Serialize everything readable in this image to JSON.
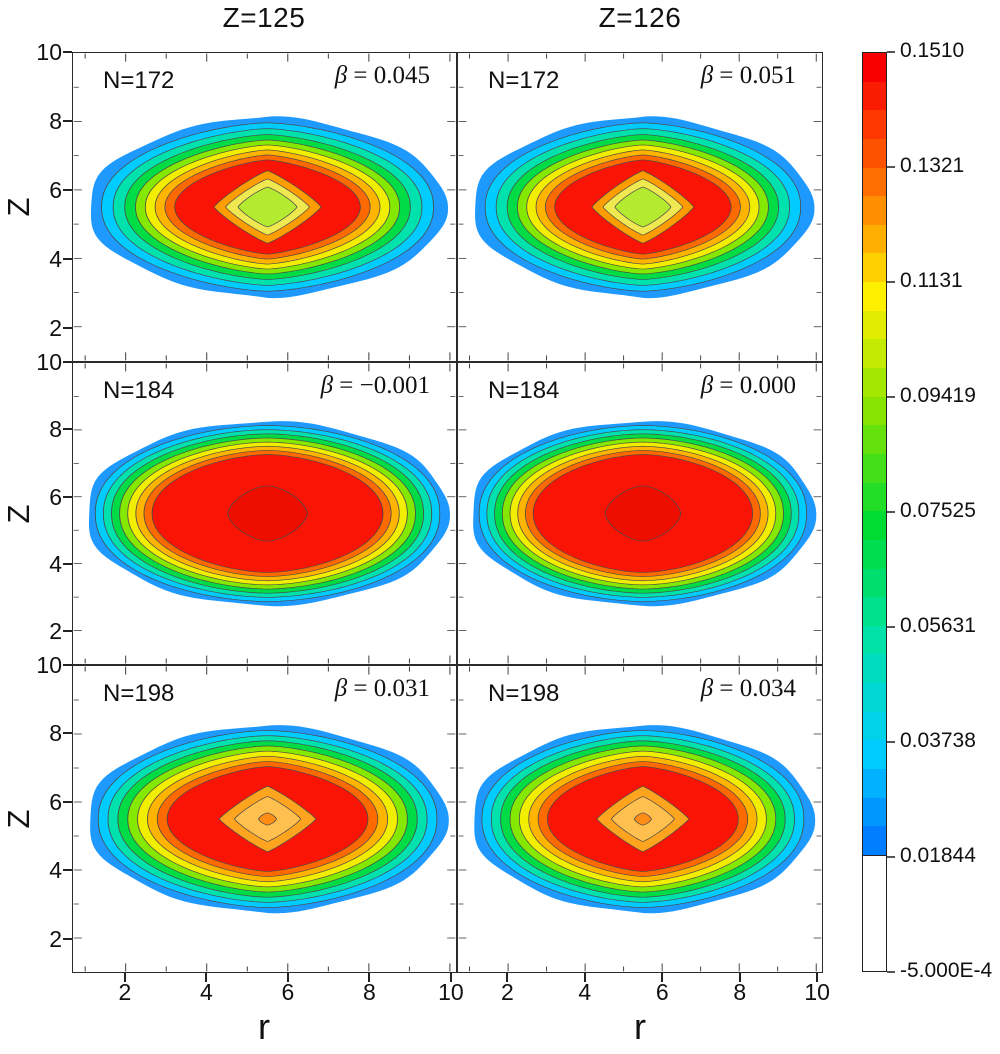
{
  "figure": {
    "description": "Nucleon density distribution contour plots for superheavy nuclei"
  },
  "chart_data": {
    "type": "filled-contour-grid",
    "columns": [
      "Z=125",
      "Z=126"
    ],
    "rows": [
      "N=172",
      "N=184",
      "N=198"
    ],
    "xlabel": "r",
    "ylabel": "Z",
    "xlim": [
      1,
      10
    ],
    "ylim": [
      1,
      10
    ],
    "x_ticks": [
      2,
      4,
      6,
      8,
      10
    ],
    "y_ticks": [
      10,
      8,
      6,
      4,
      2
    ],
    "levels": [
      -0.0005,
      0.01844,
      0.03738,
      0.05631,
      0.07525,
      0.09419,
      0.1131,
      0.1321,
      0.151
    ],
    "panels": [
      {
        "col": "Z=125",
        "row": "N=172",
        "n_label": "N=172",
        "beta_sym": "β",
        "beta_rest": " = 0.045",
        "beta_value": 0.045,
        "shape": "r172",
        "center": [
          5.5,
          5.5
        ],
        "extent_r": [
          1.2,
          9.9
        ],
        "extent_z": [
          2.9,
          8.1
        ],
        "profile": "central depression (semi-bubble)"
      },
      {
        "col": "Z=126",
        "row": "N=172",
        "n_label": "N=172",
        "beta_sym": "β",
        "beta_rest": " = 0.051",
        "beta_value": 0.051,
        "shape": "r172",
        "center": [
          5.5,
          5.5
        ],
        "extent_r": [
          1.2,
          9.9
        ],
        "extent_z": [
          2.9,
          8.1
        ],
        "profile": "central depression (semi-bubble)"
      },
      {
        "col": "Z=125",
        "row": "N=184",
        "n_label": "N=184",
        "beta_sym": "β",
        "beta_rest": " = −0.001",
        "beta_value": -0.001,
        "shape": "r184",
        "center": [
          5.5,
          5.5
        ],
        "extent_r": [
          1.1,
          9.9
        ],
        "extent_z": [
          2.8,
          8.2
        ],
        "profile": "flat-top density"
      },
      {
        "col": "Z=126",
        "row": "N=184",
        "n_label": "N=184",
        "beta_sym": "β",
        "beta_rest": " = 0.000",
        "beta_value": 0.0,
        "shape": "r184",
        "center": [
          5.5,
          5.5
        ],
        "extent_r": [
          1.1,
          9.9
        ],
        "extent_z": [
          2.8,
          8.2
        ],
        "profile": "flat-top density"
      },
      {
        "col": "Z=125",
        "row": "N=198",
        "n_label": "N=198",
        "beta_sym": "β",
        "beta_rest": " = 0.031",
        "beta_value": 0.031,
        "shape": "r198",
        "center": [
          5.5,
          5.5
        ],
        "extent_r": [
          1.1,
          9.9
        ],
        "extent_z": [
          2.7,
          8.2
        ],
        "profile": "mild central depression"
      },
      {
        "col": "Z=126",
        "row": "N=198",
        "n_label": "N=198",
        "beta_sym": "β",
        "beta_rest": " = 0.034",
        "beta_value": 0.034,
        "shape": "r198",
        "center": [
          5.5,
          5.5
        ],
        "extent_r": [
          1.1,
          9.9
        ],
        "extent_z": [
          2.7,
          8.2
        ],
        "profile": "mild central depression"
      }
    ],
    "band_colors_outer_to_inner": [
      "#1e9aff",
      "#00ccff",
      "#00e2ae",
      "#00dc46",
      "#84e800",
      "#f2ee00",
      "#ffb400",
      "#ff6a00",
      "#f91405"
    ],
    "row_shapes": {
      "r172": {
        "rx": 0.466,
        "rz": 0.294,
        "bands": [
          {
            "s": 1.0,
            "nx": 1.6,
            "ny": 2.2,
            "color": "#1e9aff"
          },
          {
            "s": 0.93,
            "nx": 1.57,
            "ny": 2.17,
            "color": "#00ccff"
          },
          {
            "s": 0.865,
            "nx": 1.54,
            "ny": 2.14,
            "color": "#00e2ae"
          },
          {
            "s": 0.8,
            "nx": 1.51,
            "ny": 2.11,
            "color": "#00dc46"
          },
          {
            "s": 0.74,
            "nx": 1.48,
            "ny": 2.08,
            "color": "#84e800"
          },
          {
            "s": 0.685,
            "nx": 1.45,
            "ny": 2.05,
            "color": "#f2ee00"
          },
          {
            "s": 0.63,
            "nx": 1.42,
            "ny": 2.02,
            "color": "#ffb400"
          },
          {
            "s": 0.575,
            "nx": 1.39,
            "ny": 1.99,
            "color": "#ff6a00"
          },
          {
            "s": 0.52,
            "nx": 1.36,
            "ny": 1.96,
            "color": "#f91405"
          }
        ],
        "center": [
          {
            "sx": 0.3,
            "sy": 0.4,
            "n": 1.15,
            "color": "#ff9c00"
          },
          {
            "sx": 0.235,
            "sy": 0.31,
            "n": 1.15,
            "color": "#f0e850"
          },
          {
            "sx": 0.165,
            "sy": 0.22,
            "n": 1.2,
            "color": "#b4ea30"
          }
        ]
      },
      "r184": {
        "rx": 0.471,
        "rz": 0.306,
        "bands": [
          {
            "s": 1.0,
            "nx": 1.85,
            "ny": 2.2,
            "color": "#1e9aff"
          },
          {
            "s": 0.955,
            "nx": 1.83,
            "ny": 2.18,
            "color": "#00ccff"
          },
          {
            "s": 0.91,
            "nx": 1.81,
            "ny": 2.16,
            "color": "#00e2ae"
          },
          {
            "s": 0.865,
            "nx": 1.79,
            "ny": 2.14,
            "color": "#00dc46"
          },
          {
            "s": 0.82,
            "nx": 1.77,
            "ny": 2.12,
            "color": "#84e800"
          },
          {
            "s": 0.775,
            "nx": 1.75,
            "ny": 2.1,
            "color": "#f2ee00"
          },
          {
            "s": 0.73,
            "nx": 1.73,
            "ny": 2.08,
            "color": "#ffb400"
          },
          {
            "s": 0.685,
            "nx": 1.71,
            "ny": 2.06,
            "color": "#ff6a00"
          },
          {
            "s": 0.64,
            "nx": 1.7,
            "ny": 2.04,
            "color": "#f91405"
          }
        ],
        "center": [
          {
            "sx": 0.22,
            "sy": 0.3,
            "n": 1.6,
            "color": "#ee0e00"
          }
        ]
      },
      "r198": {
        "rx": 0.468,
        "rz": 0.306,
        "bands": [
          {
            "s": 1.0,
            "nx": 1.72,
            "ny": 2.18,
            "color": "#1e9aff"
          },
          {
            "s": 0.945,
            "nx": 1.69,
            "ny": 2.16,
            "color": "#00ccff"
          },
          {
            "s": 0.89,
            "nx": 1.65,
            "ny": 2.14,
            "color": "#00e2ae"
          },
          {
            "s": 0.835,
            "nx": 1.62,
            "ny": 2.12,
            "color": "#00dc46"
          },
          {
            "s": 0.78,
            "nx": 1.58,
            "ny": 2.1,
            "color": "#84e800"
          },
          {
            "s": 0.725,
            "nx": 1.55,
            "ny": 2.08,
            "color": "#f2ee00"
          },
          {
            "s": 0.67,
            "nx": 1.51,
            "ny": 2.06,
            "color": "#ffb400"
          },
          {
            "s": 0.615,
            "nx": 1.48,
            "ny": 2.04,
            "color": "#ff6a00"
          },
          {
            "s": 0.56,
            "nx": 1.44,
            "ny": 2.02,
            "color": "#f91405"
          }
        ],
        "center": [
          {
            "sx": 0.27,
            "sy": 0.35,
            "n": 1.12,
            "color": "#ffa41e"
          },
          {
            "sx": 0.185,
            "sy": 0.24,
            "n": 1.15,
            "color": "#ffc050"
          },
          {
            "sx": 0.05,
            "sy": 0.065,
            "n": 1.4,
            "color": "#ff8c14"
          }
        ]
      }
    },
    "colorbar": {
      "labels": [
        "0.1510",
        "0.1321",
        "0.1131",
        "0.09419",
        "0.07525",
        "0.05631",
        "0.03738",
        "0.01844",
        "-5.000E-4"
      ],
      "stop_colors_top_to_bottom": [
        "#f80000",
        "#ff6e00",
        "#fff000",
        "#86e400",
        "#00dc32",
        "#00e2a8",
        "#00ccff",
        "#0064ff",
        "#ffffff"
      ],
      "below_min_color": "#ffffff"
    },
    "legend_position": "right",
    "grid": false
  }
}
